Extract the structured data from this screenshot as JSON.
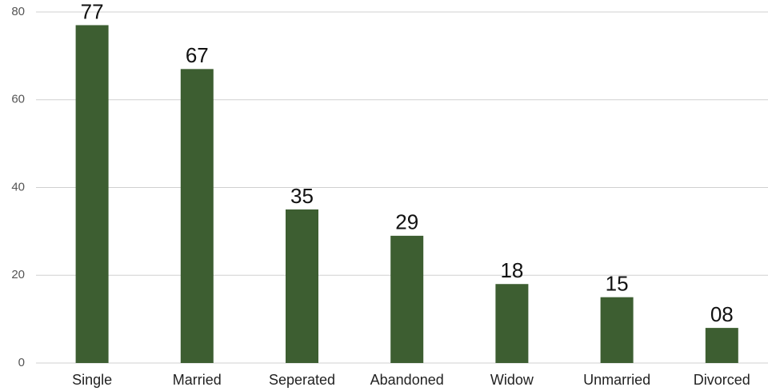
{
  "chart_data": {
    "type": "bar",
    "categories": [
      "Single",
      "Married",
      "Seperated",
      "Abandoned",
      "Widow",
      "Unmarried",
      "Divorced"
    ],
    "values": [
      77,
      67,
      35,
      29,
      18,
      15,
      8
    ],
    "value_labels": [
      "77",
      "67",
      "35",
      "29",
      "18",
      "15",
      "08"
    ],
    "color": "#3d5e31",
    "ylim": [
      0,
      80
    ],
    "yticks": [
      0,
      20,
      40,
      60,
      80
    ],
    "grid": true
  }
}
